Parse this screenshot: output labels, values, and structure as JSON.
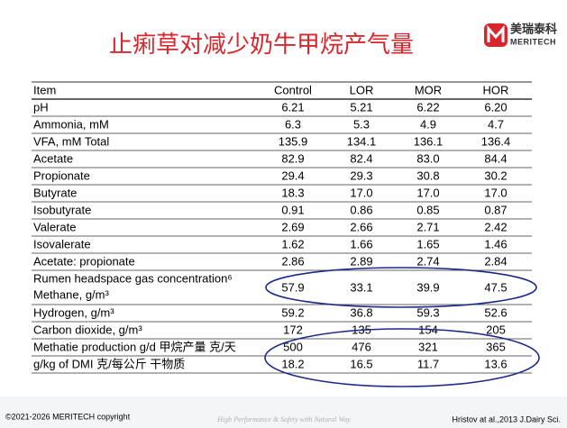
{
  "header": {
    "title": "止痢草对减少奶牛甲烷产气量",
    "logo_cn": "美瑞泰科",
    "logo_en": "MERITECH"
  },
  "table": {
    "columns": [
      "Item",
      "Control",
      "LOR",
      "MOR",
      "HOR"
    ],
    "rows": [
      [
        "pH",
        "6.21",
        "5.21",
        "6.22",
        "6.20"
      ],
      [
        "Ammonia, mM",
        "6.3",
        "5.3",
        "4.9",
        "4.7"
      ],
      [
        "VFA, mM  Total",
        "135.9",
        "134.1",
        "136.1",
        "136.4"
      ],
      [
        "Acetate",
        "82.9",
        "82.4",
        "83.0",
        "84.4"
      ],
      [
        "Propionate",
        "29.4",
        "29.3",
        "30.8",
        "30.2"
      ],
      [
        "Butyrate",
        "18.3",
        "17.0",
        "17.0",
        "17.0"
      ],
      [
        "Isobutyrate",
        "0.91",
        "0.86",
        "0.85",
        "0.87"
      ],
      [
        "Valerate",
        "2.69",
        "2.66",
        "2.71",
        "2.42"
      ],
      [
        "Isovalerate",
        "1.62",
        "1.66",
        "1.65",
        "1.46"
      ],
      [
        "Acetate: propionate",
        "2.86",
        "2.89",
        "2.74",
        "2.84"
      ],
      [
        [
          "Rumen headspace gas concentration⁶",
          "Methane, g/m³"
        ],
        "57.9",
        "33.1",
        "39.9",
        "47.5"
      ],
      [
        "Hydrogen, g/m³",
        "59.2",
        "36.8",
        "59.3",
        "52.6"
      ],
      [
        "Carbon dioxide, g/m³",
        "172",
        "135",
        "154",
        "205"
      ],
      [
        "Methatie production g/d 甲烷产量 克/天",
        "500",
        "476",
        "321",
        "365"
      ],
      [
        "g/kg of DMI 克/每公斤 干物质",
        "18.2",
        "16.5",
        "11.7",
        "13.6"
      ]
    ]
  },
  "footer": {
    "copyright": "©2021-2026 MERITECH copyright",
    "slogan": "High Performance & Safety with Natural Way",
    "citation": "Hristov at al.,2013 J.Dairy Sci."
  }
}
